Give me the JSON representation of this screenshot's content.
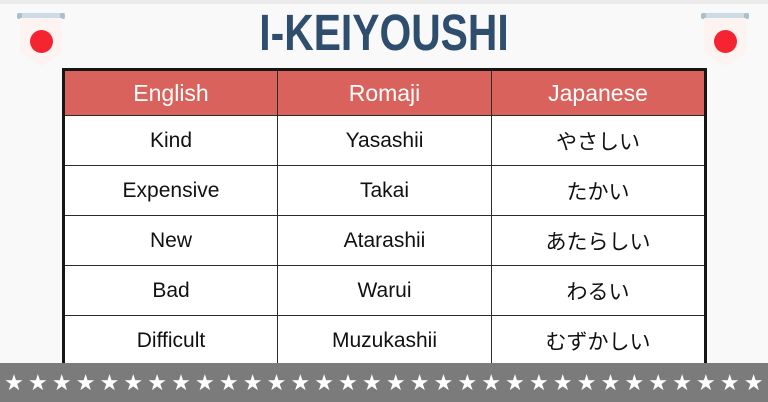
{
  "page": {
    "title": "I-KEIYOUSHI"
  },
  "table": {
    "headers": [
      "English",
      "Romaji",
      "Japanese"
    ],
    "rows": [
      [
        "Kind",
        "Yasashii",
        "やさしい"
      ],
      [
        "Expensive",
        "Takai",
        "たかい"
      ],
      [
        "New",
        "Atarashii",
        "あたらしい"
      ],
      [
        "Bad",
        "Warui",
        "わるい"
      ],
      [
        "Difficult",
        "Muzukashii",
        "むずかしい"
      ]
    ]
  },
  "decor": {
    "flag_icon": "japan-flag-pennant",
    "star_icon": "star",
    "star_char": "★",
    "star_count": 32
  },
  "colors": {
    "title_text": "#2f4d6c",
    "header_bg": "#d9635c",
    "header_text": "#ffffff",
    "cell_bg": "#ffffff",
    "cell_text": "#111111",
    "table_border": "#161616",
    "star_strip_bg": "#7b7b7b",
    "star_color": "#ffffff",
    "flag_red": "#f42531",
    "flag_pennant": "#fdf3f1",
    "flag_bar": "#cddbe4",
    "background": "#f9f9f9"
  }
}
